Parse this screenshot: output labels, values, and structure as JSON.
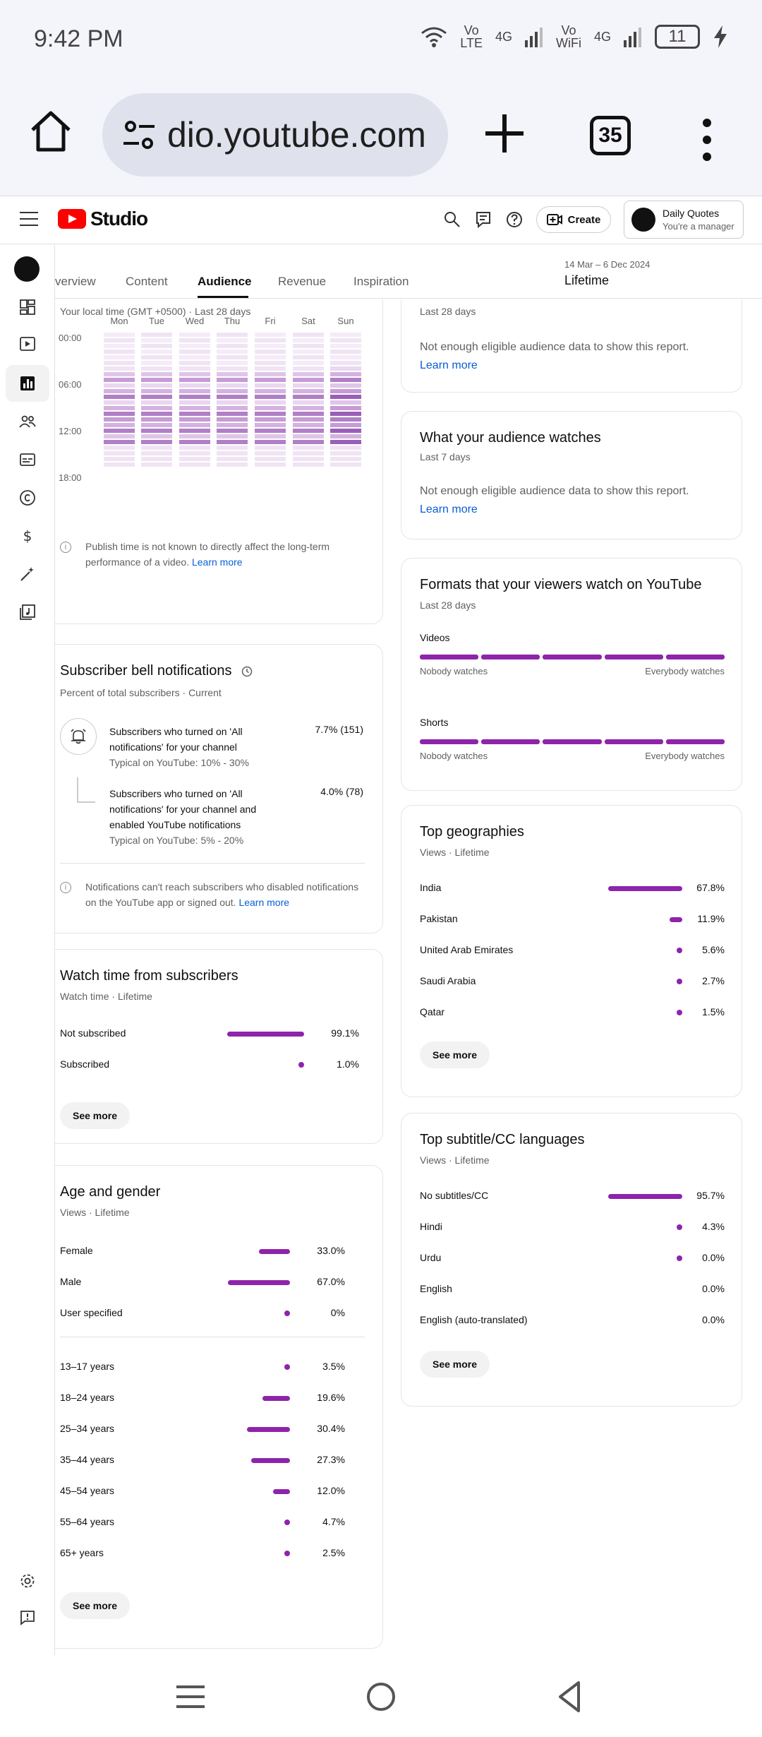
{
  "status_bar": {
    "time": "9:42 PM",
    "net1": "Vo\nLTE",
    "net1_gen": "4G",
    "net2": "Vo\nWiFi",
    "net2_gen": "4G",
    "battery": "11"
  },
  "browser": {
    "url": "dio.youtube.com",
    "tab_count": "35"
  },
  "header": {
    "logo_text": "Studio",
    "create_label": "Create",
    "account_name": "Daily Quotes",
    "account_role": "You're a manager"
  },
  "tabs": [
    "verview",
    "Content",
    "Audience",
    "Revenue",
    "Inspiration"
  ],
  "date_range": {
    "dates": "14 Mar – 6 Dec 2024",
    "label": "Lifetime"
  },
  "when_viewers_online": {
    "subtitle": "Your local time (GMT +0500) · Last 28 days",
    "days": [
      "Mon",
      "Tue",
      "Wed",
      "Thu",
      "Fri",
      "Sat",
      "Sun"
    ],
    "hours": [
      "00:00",
      "06:00",
      "12:00",
      "18:00"
    ],
    "note": "Publish time is not known to directly affect the long-term performance of a video.",
    "learn_more": "Learn more"
  },
  "top_right_partial": {
    "subtitle": "Last 28 days",
    "message": "Not enough eligible audience data to show this report.",
    "learn_more": "Learn more"
  },
  "what_audience_watches": {
    "title": "What your audience watches",
    "subtitle": "Last 7 days",
    "message": "Not enough eligible audience data to show this report.",
    "learn_more": "Learn more"
  },
  "formats": {
    "title": "Formats that your viewers watch on YouTube",
    "subtitle": "Last 28 days",
    "rows": [
      {
        "label": "Videos",
        "left": "Nobody watches",
        "right": "Everybody watches"
      },
      {
        "label": "Shorts",
        "left": "Nobody watches",
        "right": "Everybody watches"
      }
    ]
  },
  "bell": {
    "title": "Subscriber bell notifications",
    "subtitle": "Percent of total subscribers · Current",
    "rows": [
      {
        "text": "Subscribers who turned on 'All notifications' for your channel",
        "typical": "Typical on YouTube: 10% - 30%",
        "value": "7.7% (151)"
      },
      {
        "text": "Subscribers who turned on 'All notifications' for your channel and enabled YouTube notifications",
        "typical": "Typical on YouTube: 5% - 20%",
        "value": "4.0% (78)"
      }
    ],
    "note": "Notifications can't reach subscribers who disabled notifications on the YouTube app or signed out.",
    "learn_more": "Learn more"
  },
  "watch_time_subs": {
    "title": "Watch time from subscribers",
    "subtitle": "Watch time · Lifetime",
    "rows": [
      {
        "label": "Not subscribed",
        "value": "99.1%",
        "pct": 99.1
      },
      {
        "label": "Subscribed",
        "value": "1.0%",
        "pct": 1.0
      }
    ],
    "see_more": "See more"
  },
  "age_gender": {
    "title": "Age and gender",
    "subtitle": "Views · Lifetime",
    "gender": [
      {
        "label": "Female",
        "value": "33.0%",
        "pct": 33.0
      },
      {
        "label": "Male",
        "value": "67.0%",
        "pct": 67.0
      },
      {
        "label": "User specified",
        "value": "0%",
        "pct": 0
      }
    ],
    "age": [
      {
        "label": "13–17 years",
        "value": "3.5%",
        "pct": 3.5
      },
      {
        "label": "18–24 years",
        "value": "19.6%",
        "pct": 19.6
      },
      {
        "label": "25–34 years",
        "value": "30.4%",
        "pct": 30.4
      },
      {
        "label": "35–44 years",
        "value": "27.3%",
        "pct": 27.3
      },
      {
        "label": "45–54 years",
        "value": "12.0%",
        "pct": 12.0
      },
      {
        "label": "55–64 years",
        "value": "4.7%",
        "pct": 4.7
      },
      {
        "label": "65+ years",
        "value": "2.5%",
        "pct": 2.5
      }
    ],
    "see_more": "See more"
  },
  "geographies": {
    "title": "Top geographies",
    "subtitle": "Views · Lifetime",
    "rows": [
      {
        "label": "India",
        "value": "67.8%",
        "pct": 67.8
      },
      {
        "label": "Pakistan",
        "value": "11.9%",
        "pct": 11.9
      },
      {
        "label": "United Arab Emirates",
        "value": "5.6%",
        "pct": 5.6
      },
      {
        "label": "Saudi Arabia",
        "value": "2.7%",
        "pct": 2.7
      },
      {
        "label": "Qatar",
        "value": "1.5%",
        "pct": 1.5
      }
    ],
    "see_more": "See more"
  },
  "subtitles": {
    "title": "Top subtitle/CC languages",
    "subtitle": "Views · Lifetime",
    "rows": [
      {
        "label": "No subtitles/CC",
        "value": "95.7%",
        "pct": 95.7
      },
      {
        "label": "Hindi",
        "value": "4.3%",
        "pct": 4.3
      },
      {
        "label": "Urdu",
        "value": "0.0%",
        "pct": 0.0
      },
      {
        "label": "English",
        "value": "0.0%",
        "pct": 0.0
      },
      {
        "label": "English (auto-translated)",
        "value": "0.0%",
        "pct": 0.0
      }
    ],
    "see_more": "See more"
  },
  "colors": {
    "accent_purple": "#8e24aa",
    "brand_red": "#ff0000",
    "link_blue": "#065fd4"
  }
}
